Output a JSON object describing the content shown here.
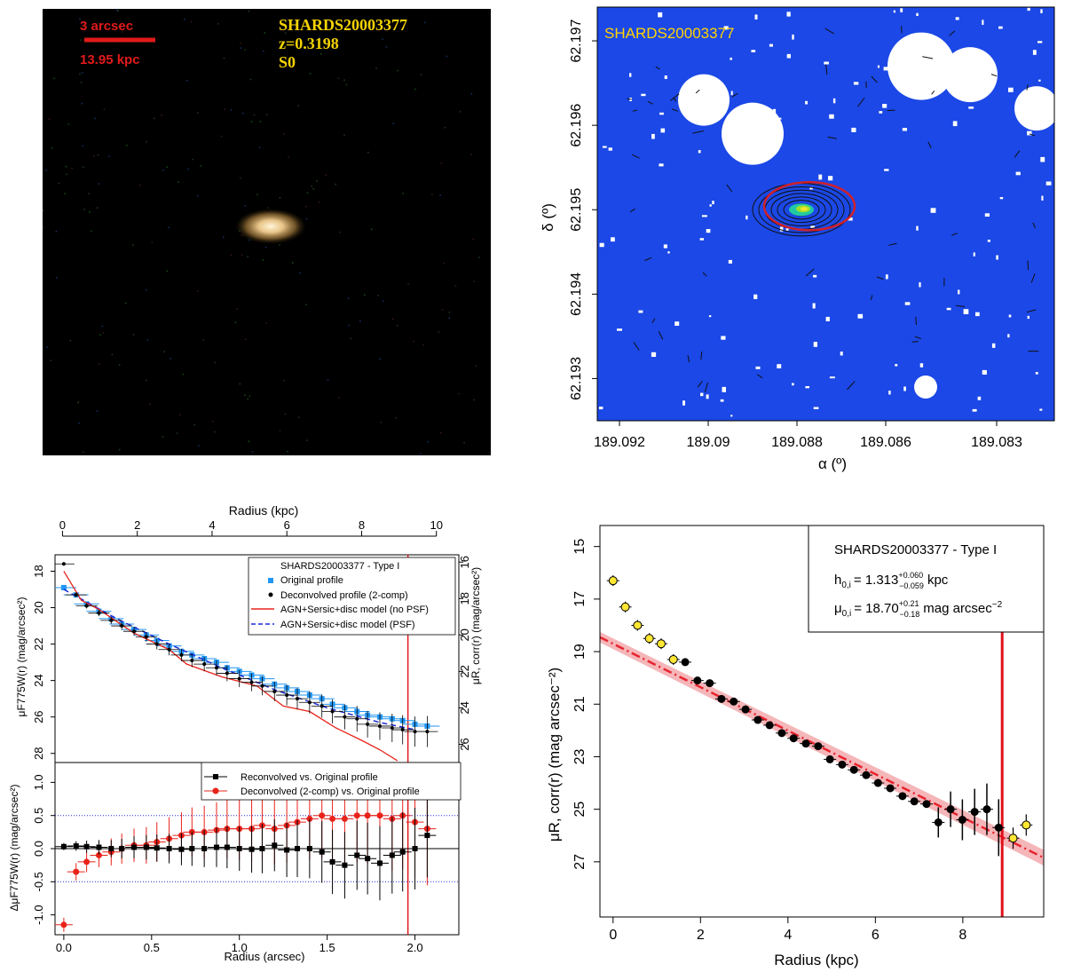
{
  "galaxy_image": {
    "scale_label": "3 arcsec",
    "scale_kpc": "13.95 kpc",
    "object_name": "SHARDS20003377",
    "redshift": "z=0.3198",
    "morph_type": "S0",
    "colors": {
      "scale": "#e11a1a",
      "text": "#f5d300",
      "background": "#000000"
    }
  },
  "chart_data": [
    {
      "type": "scatter",
      "title": "SHARDS20003377",
      "xlabel": "α (º)",
      "ylabel": "δ (º)",
      "x_ticks": [
        "189.092",
        "189.09",
        "189.088",
        "189.086",
        "189.083"
      ],
      "y_ticks": [
        "62.197",
        "62.196",
        "62.195",
        "62.194",
        "62.193"
      ],
      "xlim": [
        189.0925,
        189.0822
      ],
      "ylim": [
        62.1925,
        62.1974
      ],
      "galaxy_center": [
        189.0879,
        62.195
      ],
      "mask_circles": [
        {
          "ra": 189.0901,
          "dec": 62.1963
        },
        {
          "ra": 189.089,
          "dec": 62.1959
        },
        {
          "ra": 189.0852,
          "dec": 62.1967
        },
        {
          "ra": 189.0841,
          "dec": 62.1966
        },
        {
          "ra": 189.0826,
          "dec": 62.1962
        },
        {
          "ra": 189.0851,
          "dec": 62.1929
        }
      ],
      "colors": {
        "background": "#1b48e6",
        "ellipse": "#d0202a"
      }
    },
    {
      "type": "line",
      "top_axis": {
        "label": "Radius (kpc)",
        "ticks": [
          "0",
          "2",
          "4",
          "6",
          "8",
          "10"
        ],
        "xlim": [
          -0.2,
          10.6
        ]
      },
      "xlabel": "Radius (arcsec)",
      "x_ticks": [
        "0.0",
        "0.5",
        "1.0",
        "1.5",
        "2.0"
      ],
      "xlim": [
        -0.05,
        2.25
      ],
      "upper": {
        "ylabel": "μF775W(r) (mag/arcsec²)",
        "ylabel_right": "μR, corr(r) (mag/arcsec²)",
        "y_ticks": [
          "18",
          "20",
          "22",
          "24",
          "26",
          "28"
        ],
        "y_ticks_right": [
          "16",
          "18",
          "20",
          "22",
          "24",
          "26"
        ],
        "ylim": [
          28.5,
          17.1
        ],
        "legend": [
          "SHARDS20003377   - Type I",
          "Original profile",
          "Deconvolved profile (2-comp)",
          "AGN+Sersic+disc model (no PSF)",
          "AGN+Sersic+disc model (PSF)"
        ],
        "series": [
          {
            "name": "Original profile",
            "x": [
              0.0,
              0.07,
              0.13,
              0.2,
              0.27,
              0.33,
              0.4,
              0.47,
              0.53,
              0.6,
              0.67,
              0.73,
              0.8,
              0.87,
              0.93,
              1.0,
              1.07,
              1.13,
              1.2,
              1.27,
              1.33,
              1.4,
              1.47,
              1.53,
              1.6,
              1.67,
              1.73,
              1.8,
              1.87,
              1.93,
              2.0,
              2.07
            ],
            "y": [
              18.9,
              19.3,
              19.8,
              20.2,
              20.6,
              20.9,
              21.2,
              21.5,
              21.8,
              22.1,
              22.4,
              22.6,
              22.8,
              23.0,
              23.3,
              23.5,
              23.7,
              23.9,
              24.2,
              24.4,
              24.6,
              24.8,
              25.0,
              25.3,
              25.5,
              25.7,
              25.9,
              26.0,
              26.1,
              26.2,
              26.4,
              26.5
            ]
          },
          {
            "name": "Deconvolved profile (2-comp)",
            "x": [
              0.0,
              0.07,
              0.13,
              0.2,
              0.27,
              0.33,
              0.4,
              0.47,
              0.53,
              0.6,
              0.67,
              0.73,
              0.8,
              0.87,
              0.93,
              1.0,
              1.07,
              1.13,
              1.2,
              1.27,
              1.33,
              1.4,
              1.47,
              1.53,
              1.6,
              1.67,
              1.73,
              1.8,
              1.87,
              1.93,
              2.0,
              2.07
            ],
            "y": [
              17.6,
              19.3,
              19.9,
              20.3,
              20.7,
              21.0,
              21.3,
              21.6,
              22.0,
              22.3,
              22.6,
              22.9,
              23.1,
              23.3,
              23.6,
              23.9,
              24.1,
              24.3,
              24.6,
              24.8,
              25.0,
              25.2,
              25.4,
              25.7,
              26.0,
              26.1,
              26.4,
              26.5,
              26.6,
              26.7,
              26.8,
              26.8
            ]
          },
          {
            "name": "AGN+Sersic+disc model (no PSF)",
            "x": [
              0.0,
              0.1,
              0.2,
              0.4,
              0.6,
              0.7,
              0.9,
              1.1,
              1.25,
              1.4,
              1.55,
              1.7,
              1.8,
              1.9
            ],
            "y": [
              18.0,
              19.6,
              20.1,
              21.4,
              22.3,
              23.1,
              23.8,
              24.3,
              25.4,
              25.7,
              26.6,
              27.3,
              27.8,
              28.4
            ]
          },
          {
            "name": "AGN+Sersic+disc model (PSF)",
            "x": [
              0.0,
              0.3,
              0.6,
              0.9,
              1.2,
              1.5,
              1.8,
              2.0
            ],
            "y": [
              19.0,
              20.6,
              22.0,
              23.3,
              24.5,
              25.5,
              26.3,
              26.7
            ]
          }
        ]
      },
      "lower": {
        "ylabel": "ΔμF775W(r) (mag/arcsec²)",
        "y_ticks": [
          "-1.0",
          "-0.5",
          "0.0",
          "0.5",
          "1.0"
        ],
        "ylim": [
          -1.3,
          1.3
        ],
        "legend": [
          "Reconvolved vs. Original profile",
          "Deconvolved (2-comp) vs. Original profile"
        ],
        "series": [
          {
            "name": "Reconvolved vs. Original profile",
            "x": [
              0.0,
              0.07,
              0.13,
              0.2,
              0.27,
              0.33,
              0.4,
              0.47,
              0.53,
              0.6,
              0.67,
              0.73,
              0.8,
              0.87,
              0.93,
              1.0,
              1.07,
              1.13,
              1.2,
              1.27,
              1.33,
              1.4,
              1.47,
              1.53,
              1.6,
              1.67,
              1.73,
              1.8,
              1.87,
              1.93,
              2.0,
              2.07
            ],
            "y": [
              0.03,
              0.04,
              0.03,
              0.02,
              0.0,
              0.0,
              0.02,
              0.02,
              0.01,
              0.0,
              -0.01,
              0.0,
              0.0,
              0.02,
              0.02,
              0.0,
              -0.01,
              0.0,
              0.05,
              -0.02,
              0.0,
              0.0,
              -0.05,
              -0.2,
              -0.25,
              -0.1,
              -0.15,
              -0.22,
              -0.1,
              -0.05,
              0.0,
              0.2
            ]
          },
          {
            "name": "Deconvolved (2-comp) vs. Original profile",
            "x": [
              0.0,
              0.07,
              0.13,
              0.2,
              0.27,
              0.33,
              0.4,
              0.47,
              0.53,
              0.6,
              0.67,
              0.73,
              0.8,
              0.87,
              0.93,
              1.0,
              1.07,
              1.13,
              1.2,
              1.27,
              1.33,
              1.4,
              1.47,
              1.53,
              1.6,
              1.67,
              1.73,
              1.8,
              1.87,
              1.93,
              2.0,
              2.07
            ],
            "y": [
              -1.15,
              -0.35,
              -0.2,
              -0.1,
              -0.05,
              0.0,
              0.05,
              0.05,
              0.1,
              0.15,
              0.2,
              0.25,
              0.25,
              0.28,
              0.3,
              0.3,
              0.3,
              0.35,
              0.3,
              0.35,
              0.4,
              0.45,
              0.5,
              0.45,
              0.45,
              0.5,
              0.5,
              0.5,
              0.45,
              0.5,
              0.4,
              0.3
            ]
          }
        ]
      }
    },
    {
      "type": "scatter",
      "xlabel": "Radius (kpc)",
      "ylabel": "μR, corr(r) (mag arcsec⁻²)",
      "x_ticks": [
        "0",
        "2",
        "4",
        "6",
        "8"
      ],
      "y_ticks": [
        "15",
        "17",
        "19",
        "21",
        "23",
        "25",
        "27"
      ],
      "xlim": [
        -0.3,
        9.85
      ],
      "ylim": [
        29.1,
        14.2
      ],
      "legend": {
        "name": "SHARDS20003377   - Type I",
        "h_label": "h",
        "h_sub": "0,i",
        "h_value": "= 1.313",
        "h_err_up": "+0.060",
        "h_err_down": "−0.059",
        "h_unit": "kpc",
        "mu_label": "μ",
        "mu_sub": "0,i",
        "mu_value": "= 18.70",
        "mu_err_up": "+0.21",
        "mu_err_down": "−0.18",
        "mu_unit": "mag arcsec",
        "mu_unit_exp": "−2"
      },
      "fit": {
        "mu0": 18.7,
        "h": 1.313,
        "x_range": [
          -0.3,
          9.85
        ]
      },
      "break_radius": 8.9,
      "series": [
        {
          "name": "excluded (yellow)",
          "x": [
            0.0,
            0.28,
            0.56,
            0.83,
            1.1,
            1.38,
            9.15,
            9.45
          ],
          "y": [
            16.3,
            17.3,
            18.0,
            18.5,
            18.7,
            19.3,
            26.1,
            25.6
          ]
        },
        {
          "name": "fitted (black)",
          "x": [
            1.65,
            1.93,
            2.21,
            2.48,
            2.76,
            3.03,
            3.31,
            3.58,
            3.86,
            4.13,
            4.41,
            4.69,
            4.96,
            5.24,
            5.51,
            5.79,
            6.06,
            6.34,
            6.62,
            6.89,
            7.17,
            7.44,
            7.72,
            7.99,
            8.27,
            8.55,
            8.82
          ],
          "y": [
            19.4,
            20.1,
            20.2,
            20.8,
            20.9,
            21.2,
            21.6,
            21.8,
            22.1,
            22.3,
            22.5,
            22.6,
            23.1,
            23.3,
            23.5,
            23.7,
            24.0,
            24.2,
            24.5,
            24.7,
            24.8,
            25.5,
            25.0,
            25.4,
            25.1,
            25.0,
            25.7
          ]
        }
      ],
      "colors": {
        "fit": "#e8232f",
        "band": "#f2a4a8",
        "break": "#e0101a",
        "yellow": "#ffe733"
      }
    }
  ]
}
